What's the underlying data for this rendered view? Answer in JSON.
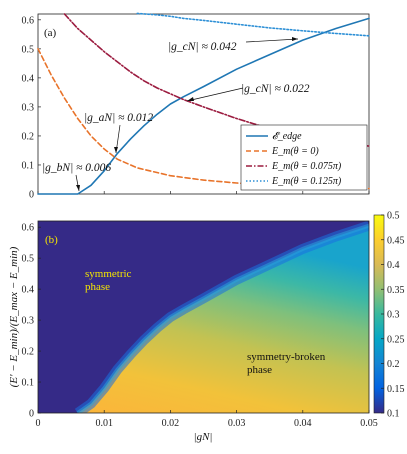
{
  "chart_data": [
    {
      "type": "line",
      "panel_label": "(a)",
      "xlim": [
        0,
        0.05
      ],
      "ylim": [
        0,
        0.62
      ],
      "y_ticks": [
        "0",
        "0.1",
        "0.2",
        "0.3",
        "0.4",
        "0.5",
        "0.6"
      ],
      "y_tick_values": [
        0,
        0.1,
        0.2,
        0.3,
        0.4,
        0.5,
        0.6
      ],
      "legend_position": "lower-right",
      "series": [
        {
          "name": "𝓔_edge",
          "color": "#1f77b4",
          "dash": "solid",
          "x": [
            0,
            0.006,
            0.008,
            0.01,
            0.012,
            0.014,
            0.016,
            0.018,
            0.02,
            0.022,
            0.025,
            0.03,
            0.035,
            0.04,
            0.045,
            0.05
          ],
          "y": [
            0,
            0,
            0.03,
            0.08,
            0.14,
            0.19,
            0.235,
            0.275,
            0.31,
            0.335,
            0.37,
            0.43,
            0.48,
            0.53,
            0.57,
            0.605
          ]
        },
        {
          "name": "E_m(θ = 0)",
          "color": "#e8732a",
          "dash": "dashed",
          "x": [
            0,
            0.002,
            0.004,
            0.006,
            0.008,
            0.01,
            0.012,
            0.015,
            0.02,
            0.025,
            0.03,
            0.035,
            0.04,
            0.045,
            0.05
          ],
          "y": [
            0.5,
            0.41,
            0.33,
            0.26,
            0.2,
            0.155,
            0.12,
            0.09,
            0.063,
            0.048,
            0.038,
            0.031,
            0.026,
            0.022,
            0.019
          ]
        },
        {
          "name": "E_m(θ = 0.075π)",
          "color": "#9b1b3f",
          "dash": "dashdot",
          "x": [
            0.004,
            0.006,
            0.008,
            0.01,
            0.012,
            0.014,
            0.016,
            0.018,
            0.02,
            0.022,
            0.025,
            0.03,
            0.035,
            0.04,
            0.045,
            0.05
          ],
          "y": [
            0.62,
            0.57,
            0.53,
            0.49,
            0.455,
            0.42,
            0.39,
            0.365,
            0.345,
            0.325,
            0.3,
            0.26,
            0.225,
            0.2,
            0.18,
            0.165
          ]
        },
        {
          "name": "E_m(θ = 0.125π)",
          "color": "#2c8fd6",
          "dash": "dotted",
          "x": [
            0.015,
            0.018,
            0.02,
            0.022,
            0.025,
            0.03,
            0.035,
            0.04,
            0.045,
            0.05
          ],
          "y": [
            0.622,
            0.617,
            0.612,
            0.605,
            0.598,
            0.585,
            0.572,
            0.562,
            0.553,
            0.545
          ]
        }
      ],
      "annotations": [
        {
          "text": "|g_bN| ≈ 0.006",
          "x": 0.006,
          "y": 0.0
        },
        {
          "text": "|g_aN| ≈ 0.012",
          "x": 0.012,
          "y": 0.12
        },
        {
          "text": "|g_cN| ≈ 0.022",
          "x": 0.0225,
          "y": 0.33
        },
        {
          "text": "|g_cN| ≈ 0.042",
          "x": 0.0425,
          "y": 0.55
        }
      ]
    },
    {
      "type": "heatmap",
      "panel_label": "(b)",
      "xlabel": "|gN|",
      "ylabel": "(E' − E_min)/(E_max − E_min)",
      "xlim": [
        0,
        0.05
      ],
      "ylim": [
        0,
        0.62
      ],
      "x_ticks": [
        "0",
        "0.01",
        "0.02",
        "0.03",
        "0.04",
        "0.05"
      ],
      "x_tick_values": [
        0,
        0.01,
        0.02,
        0.03,
        0.04,
        0.05
      ],
      "y_ticks": [
        "0",
        "0.1",
        "0.2",
        "0.3",
        "0.4",
        "0.5",
        "0.6"
      ],
      "y_tick_values": [
        0,
        0.1,
        0.2,
        0.3,
        0.4,
        0.5,
        0.6
      ],
      "colorbar": {
        "min": 0.1,
        "max": 0.5,
        "ticks": [
          "0.1",
          "0.15",
          "0.2",
          "0.25",
          "0.3",
          "0.35",
          "0.4",
          "0.45",
          "0.5"
        ],
        "tick_values": [
          0.1,
          0.15,
          0.2,
          0.25,
          0.3,
          0.35,
          0.4,
          0.45,
          0.5
        ],
        "colormap": "parula"
      },
      "boundary": {
        "x": [
          0.006,
          0.008,
          0.01,
          0.012,
          0.014,
          0.016,
          0.018,
          0.02,
          0.022,
          0.025,
          0.03,
          0.035,
          0.04,
          0.045,
          0.05
        ],
        "y": [
          0,
          0.03,
          0.08,
          0.14,
          0.19,
          0.235,
          0.275,
          0.31,
          0.335,
          0.37,
          0.43,
          0.48,
          0.53,
          0.57,
          0.605
        ]
      },
      "regions": [
        {
          "text": "symmetric\nphase",
          "x": 0.0065,
          "y": 0.43,
          "color": "#f5e600"
        },
        {
          "text": "symmetry-broken\nphase",
          "x": 0.0325,
          "y": 0.22,
          "color": "#111111"
        }
      ]
    }
  ]
}
